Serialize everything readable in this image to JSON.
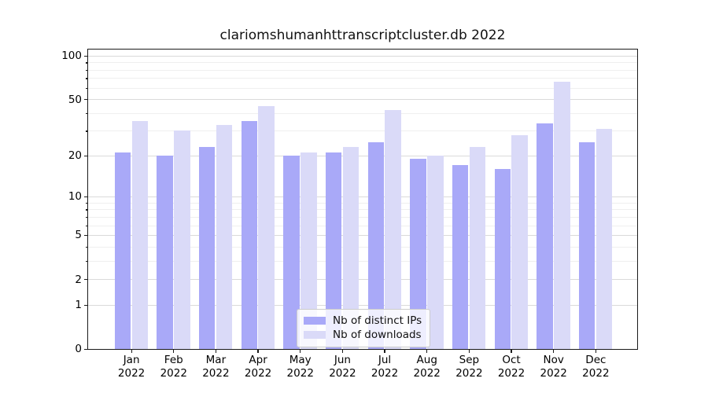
{
  "figure_title": "clariomshumanhttranscriptcluster.db 2022",
  "chart_data": {
    "type": "bar",
    "title": "clariomshumanhttranscriptcluster.db 2022",
    "categories": [
      "Jan 2022",
      "Feb 2022",
      "Mar 2022",
      "Apr 2022",
      "May 2022",
      "Jun 2022",
      "Jul 2022",
      "Aug 2022",
      "Sep 2022",
      "Oct 2022",
      "Nov 2022",
      "Dec 2022"
    ],
    "series": [
      {
        "name": "Nb of distinct IPs",
        "color": "#a9a9f8",
        "values": [
          21,
          20,
          23,
          35,
          20,
          21,
          25,
          19,
          17,
          16,
          34,
          25
        ]
      },
      {
        "name": "Nb of downloads",
        "color": "#dadaf8",
        "values": [
          35,
          30,
          33,
          45,
          21,
          23,
          42,
          20,
          23,
          28,
          66,
          31
        ]
      }
    ],
    "xlabel": "",
    "ylabel": "",
    "yscale": "log1p",
    "ylim": [
      0,
      100
    ],
    "ytick_labels": [
      0,
      1,
      2,
      5,
      10,
      20,
      50,
      100
    ],
    "minor_gridlines": [
      3,
      4,
      6,
      7,
      8,
      9,
      30,
      40,
      60,
      70,
      80,
      90
    ],
    "grid": true,
    "legend_position": "lower center inside"
  },
  "legend": {
    "items": [
      {
        "label": "Nb of distinct IPs"
      },
      {
        "label": "Nb of downloads"
      }
    ]
  },
  "colors": {
    "bar_dark": "#a9a9f8",
    "bar_light": "#dadaf8",
    "spine": "#1a1a1a",
    "grid_major": "#dadada",
    "grid_minor": "#efefef",
    "legend_border": "#cccccc"
  }
}
